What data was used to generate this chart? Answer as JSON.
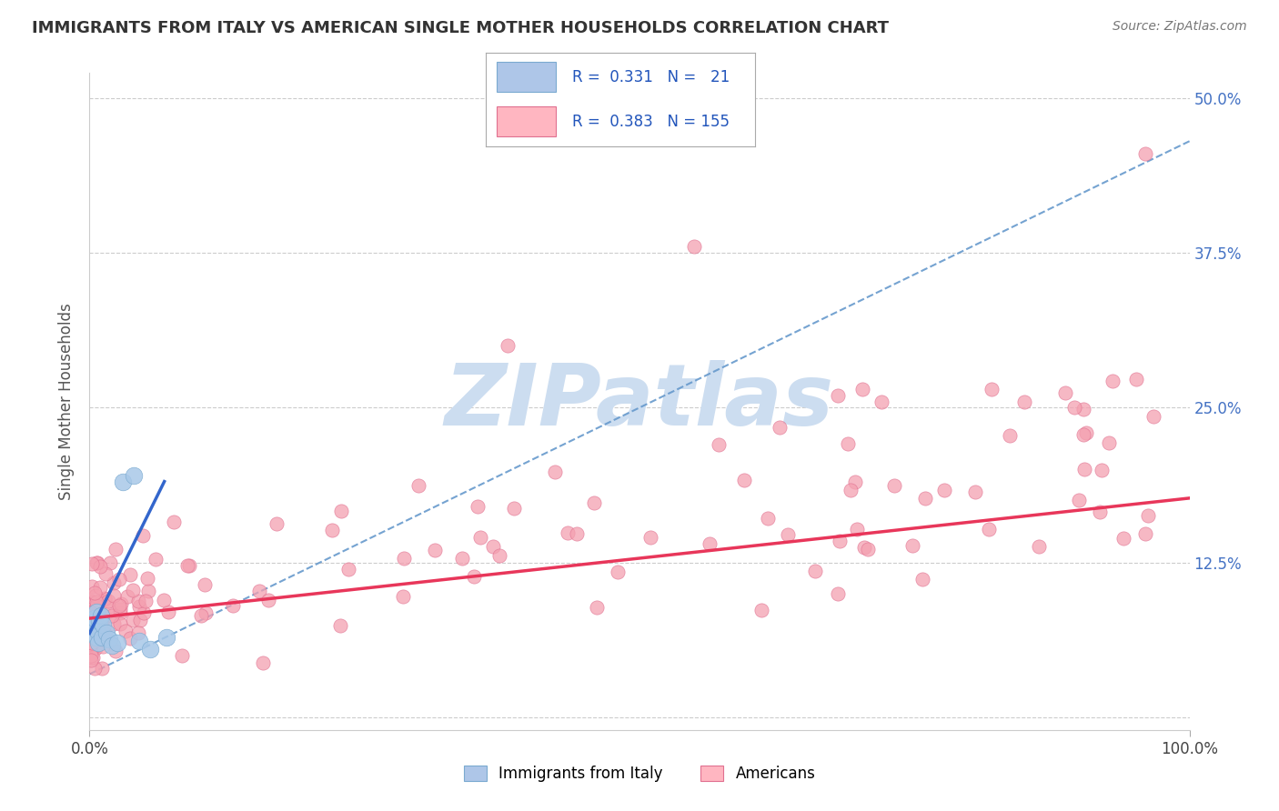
{
  "title": "IMMIGRANTS FROM ITALY VS AMERICAN SINGLE MOTHER HOUSEHOLDS CORRELATION CHART",
  "source": "Source: ZipAtlas.com",
  "ylabel": "Single Mother Households",
  "ytick_vals": [
    0.0,
    0.125,
    0.25,
    0.375,
    0.5
  ],
  "ytick_labels": [
    "",
    "12.5%",
    "25.0%",
    "37.5%",
    "50.0%"
  ],
  "background_color": "#ffffff",
  "grid_color": "#cccccc",
  "blue_scatter_color": "#a8c8e8",
  "blue_scatter_edge": "#7aaad0",
  "pink_scatter_color": "#f4a0b0",
  "pink_scatter_edge": "#e07090",
  "blue_line_color": "#3366cc",
  "pink_line_color": "#e8365a",
  "blue_dash_color": "#6699cc",
  "watermark_color": "#ccddf0",
  "xlim": [
    0.0,
    1.0
  ],
  "ylim": [
    -0.01,
    0.52
  ],
  "legend_blue_R": "0.331",
  "legend_blue_N": "21",
  "legend_pink_R": "0.383",
  "legend_pink_N": "155",
  "legend_label_blue": "Immigrants from Italy",
  "legend_label_pink": "Americans",
  "marker_size_blue": 180,
  "marker_size_pink": 120
}
